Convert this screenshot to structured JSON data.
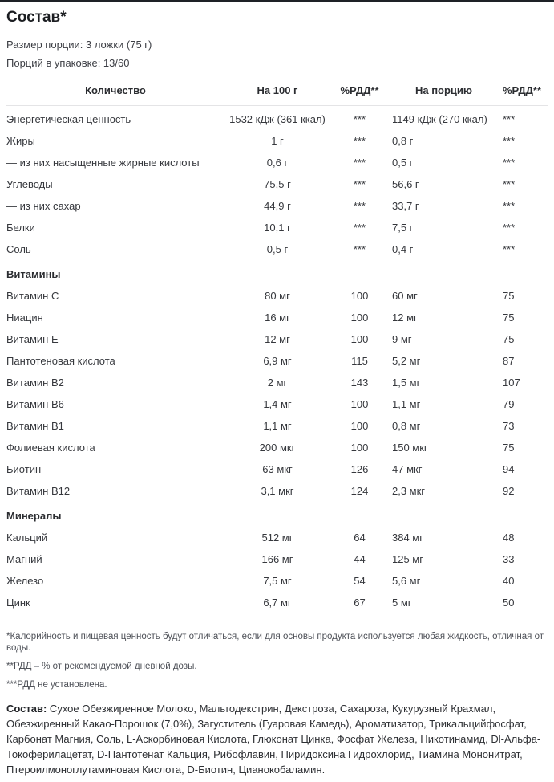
{
  "title": "Состав*",
  "serving": {
    "size": "Размер порции: 3 ложки (75 г)",
    "per_pack": "Порций в упаковке: 13/60"
  },
  "colors": {
    "top_border": "#1e2126",
    "divider": "#e4e4e6",
    "text": "#36383d",
    "muted": "#4e5158"
  },
  "table": {
    "headers": [
      "Количество",
      "На 100 г",
      "%РДД**",
      "На порцию",
      "%РДД**"
    ],
    "rows": [
      {
        "cells": [
          "Энергетическая ценность",
          "1532 кДж (361 ккал)",
          "***",
          "1149 кДж (270 ккал)",
          "***"
        ]
      },
      {
        "cells": [
          "Жиры",
          "1 г",
          "***",
          "0,8 г",
          "***"
        ]
      },
      {
        "cells": [
          "— из них насыщенные жирные кислоты",
          "0,6 г",
          "***",
          "0,5 г",
          "***"
        ]
      },
      {
        "cells": [
          "Углеводы",
          "75,5 г",
          "***",
          "56,6 г",
          "***"
        ]
      },
      {
        "cells": [
          "— из них сахар",
          "44,9 г",
          "***",
          "33,7 г",
          "***"
        ]
      },
      {
        "cells": [
          "Белки",
          "10,1 г",
          "***",
          "7,5 г",
          "***"
        ]
      },
      {
        "cells": [
          "Соль",
          "0,5 г",
          "***",
          "0,4 г",
          "***"
        ]
      },
      {
        "section": "Витамины"
      },
      {
        "cells": [
          "Витамин C",
          "80 мг",
          "100",
          "60 мг",
          "75"
        ]
      },
      {
        "cells": [
          "Ниацин",
          "16 мг",
          "100",
          "12 мг",
          "75"
        ]
      },
      {
        "cells": [
          "Витамин E",
          "12 мг",
          "100",
          "9 мг",
          "75"
        ]
      },
      {
        "cells": [
          "Пантотеновая кислота",
          "6,9 мг",
          "115",
          "5,2 мг",
          "87"
        ]
      },
      {
        "cells": [
          "Витамин B2",
          "2 мг",
          "143",
          "1,5 мг",
          "107"
        ]
      },
      {
        "cells": [
          "Витамин B6",
          "1,4 мг",
          "100",
          "1,1 мг",
          "79"
        ]
      },
      {
        "cells": [
          "Витамин B1",
          "1,1 мг",
          "100",
          "0,8 мг",
          "73"
        ]
      },
      {
        "cells": [
          "Фолиевая кислота",
          "200 мкг",
          "100",
          "150 мкг",
          "75"
        ]
      },
      {
        "cells": [
          "Биотин",
          "63 мкг",
          "126",
          "47 мкг",
          "94"
        ]
      },
      {
        "cells": [
          "Витамин B12",
          "3,1 мкг",
          "124",
          "2,3 мкг",
          "92"
        ]
      },
      {
        "section": "Минералы"
      },
      {
        "cells": [
          "Кальций",
          "512 мг",
          "64",
          "384 мг",
          "48"
        ]
      },
      {
        "cells": [
          "Магний",
          "166 мг",
          "44",
          "125 мг",
          "33"
        ]
      },
      {
        "cells": [
          "Железо",
          "7,5 мг",
          "54",
          "5,6 мг",
          "40"
        ]
      },
      {
        "cells": [
          "Цинк",
          "6,7 мг",
          "67",
          "5 мг",
          "50"
        ]
      }
    ]
  },
  "footnotes": [
    "*Калорийность и пищевая ценность будут отличаться, если для основы продукта используется любая жидкость, отличная от воды.",
    "**РДД – % от рекомендуемой дневной дозы.",
    "***РДД не установлена."
  ],
  "ingredients": {
    "label": "Состав:",
    "text": " Сухое Обезжиренное Молоко, Мальтодекстрин, Декстроза, Сахароза, Кукурузный Крахмал, Обезжиренный Какао-Порошок (7,0%), Загуститель (Гуаровая Камедь), Ароматизатор, Трикальцийфосфат, Карбонат Магния, Соль, L-Аскорбиновая Кислота, Глюконат Цинка, Фосфат Железа, Никотинамид, Dl-Альфа-Токоферилацетат, D-Пантотенат Кальция, Рибофлавин, Пиридоксина Гидрохлорид, Тиамина Мононитрат, Птероилмоноглутаминовая Кислота, D-Биотин, Цианокобаламин."
  }
}
